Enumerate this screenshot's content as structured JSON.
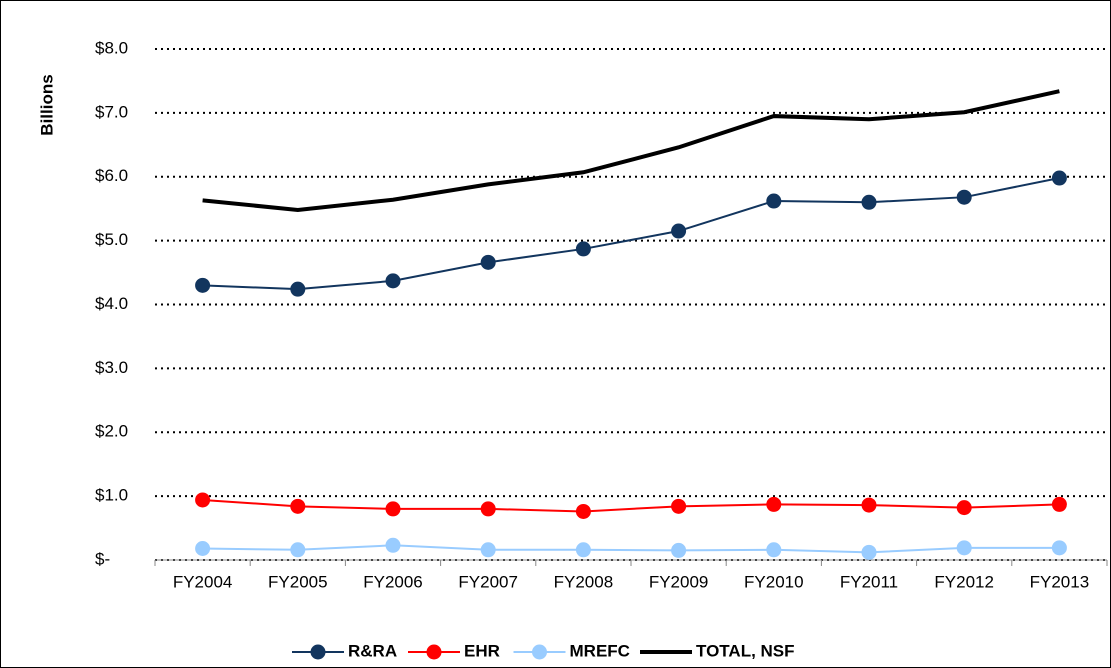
{
  "chart_data": {
    "type": "line",
    "y_label": "Billions",
    "categories": [
      "FY2004",
      "FY2005",
      "FY2006",
      "FY2007",
      "FY2008",
      "FY2009",
      "FY2010",
      "FY2011",
      "FY2012",
      "FY2013"
    ],
    "series": [
      {
        "name": "R&RA",
        "color": "#12355e",
        "markers": true,
        "width": 2,
        "values": [
          4.3,
          4.24,
          4.37,
          4.66,
          4.87,
          5.15,
          5.62,
          5.6,
          5.68,
          5.98
        ]
      },
      {
        "name": "EHR",
        "color": "#ff0000",
        "markers": true,
        "width": 2,
        "values": [
          0.94,
          0.84,
          0.8,
          0.8,
          0.76,
          0.84,
          0.87,
          0.86,
          0.82,
          0.87
        ]
      },
      {
        "name": "MREFC",
        "color": "#99ccff",
        "markers": true,
        "width": 2,
        "values": [
          0.18,
          0.16,
          0.23,
          0.16,
          0.16,
          0.15,
          0.16,
          0.12,
          0.19,
          0.19
        ]
      },
      {
        "name": "TOTAL, NSF",
        "color": "#000000",
        "markers": false,
        "width": 4,
        "values": [
          5.63,
          5.48,
          5.64,
          5.88,
          6.07,
          6.46,
          6.95,
          6.9,
          7.01,
          7.34
        ]
      }
    ],
    "ylim": [
      0,
      8
    ],
    "yticks": [
      {
        "value": 0,
        "label": "$-"
      },
      {
        "value": 1,
        "label": "$1.0"
      },
      {
        "value": 2,
        "label": "$2.0"
      },
      {
        "value": 3,
        "label": "$3.0"
      },
      {
        "value": 4,
        "label": "$4.0"
      },
      {
        "value": 5,
        "label": "$5.0"
      },
      {
        "value": 6,
        "label": "$6.0"
      },
      {
        "value": 7,
        "label": "$7.0"
      },
      {
        "value": 8,
        "label": "$8.0"
      }
    ],
    "grid": true,
    "legend": "bottom"
  }
}
